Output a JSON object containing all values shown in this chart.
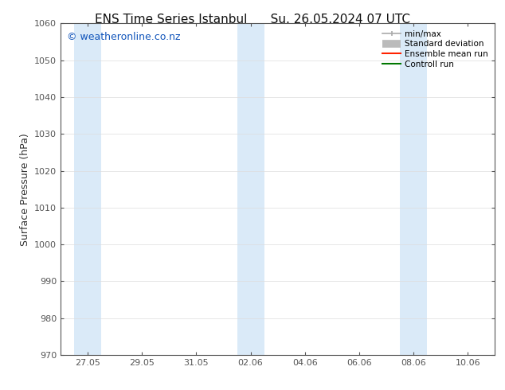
{
  "title_left": "ENS Time Series Istanbul",
  "title_right": "Su. 26.05.2024 07 UTC",
  "ylabel": "Surface Pressure (hPa)",
  "ylim": [
    970,
    1060
  ],
  "yticks": [
    970,
    980,
    990,
    1000,
    1010,
    1020,
    1030,
    1040,
    1050,
    1060
  ],
  "xtick_labels": [
    "27.05",
    "29.05",
    "31.05",
    "02.06",
    "04.06",
    "06.06",
    "08.06",
    "10.06"
  ],
  "xtick_positions": [
    0,
    2,
    4,
    6,
    8,
    10,
    12,
    14
  ],
  "shaded_bands": [
    {
      "xmin": -0.5,
      "xmax": 0.5
    },
    {
      "xmin": 5.5,
      "xmax": 6.5
    },
    {
      "xmin": 11.5,
      "xmax": 12.5
    }
  ],
  "shade_color": "#daeaf8",
  "bg_color": "#ffffff",
  "watermark": "© weatheronline.co.nz",
  "watermark_color": "#1155bb",
  "legend_labels": [
    "min/max",
    "Standard deviation",
    "Ensemble mean run",
    "Controll run"
  ],
  "legend_colors": [
    "#aaaaaa",
    "#bbbbbb",
    "#ff2200",
    "#007700"
  ],
  "title_fontsize": 11,
  "tick_fontsize": 8,
  "ylabel_fontsize": 9,
  "watermark_fontsize": 9,
  "xlim": [
    -1,
    15
  ],
  "spine_color": "#555555",
  "tick_color": "#555555"
}
